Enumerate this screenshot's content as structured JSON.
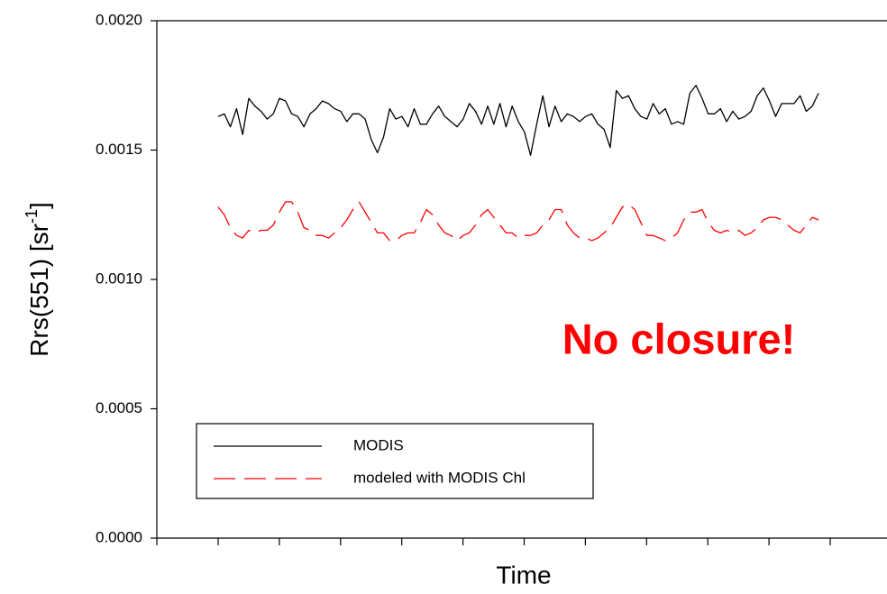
{
  "chart_data": {
    "type": "line",
    "x_label": "Time",
    "y_label_parts": [
      "Rrs(551)  [sr",
      "-1",
      "]"
    ],
    "annotation": "No closure!",
    "annotation_color": "#ff0000",
    "ylim": [
      0,
      0.002
    ],
    "yticks": [
      {
        "value": 0,
        "label": "0.0000"
      },
      {
        "value": 0.0005,
        "label": "0.0005"
      },
      {
        "value": 0.001,
        "label": "0.0010"
      },
      {
        "value": 0.0015,
        "label": "0.0015"
      },
      {
        "value": 0.002,
        "label": "0.0020"
      }
    ],
    "categories": [
      null,
      null,
      null,
      null,
      null,
      null,
      null,
      null,
      null,
      null,
      null,
      null,
      null,
      null,
      null,
      null,
      null,
      null,
      null,
      null,
      null,
      null,
      null,
      null,
      null,
      null,
      null,
      null,
      null,
      null,
      null,
      null,
      null,
      null,
      null,
      null,
      null,
      null,
      null,
      null,
      null,
      null,
      null,
      null,
      null,
      null,
      null,
      null,
      null,
      null,
      null,
      null,
      null,
      null,
      null,
      null,
      null,
      null,
      null,
      null,
      null,
      null,
      null,
      null,
      null,
      null,
      null,
      null,
      null,
      null,
      null,
      null,
      null,
      null,
      null,
      null,
      null,
      null,
      null,
      null,
      null,
      null,
      null,
      null,
      null,
      null,
      null,
      null,
      null,
      null,
      null,
      null,
      null,
      null,
      null,
      null,
      null,
      null,
      null
    ],
    "series": [
      {
        "name": "MODIS",
        "color": "#000000",
        "dashed": false,
        "values": [
          0.00163,
          0.00164,
          0.00159,
          0.00166,
          0.00156,
          0.0017,
          0.00167,
          0.00165,
          0.00162,
          0.00164,
          0.0017,
          0.00169,
          0.00164,
          0.00163,
          0.00159,
          0.00164,
          0.00166,
          0.00169,
          0.00168,
          0.00166,
          0.00165,
          0.00161,
          0.00164,
          0.00164,
          0.00162,
          0.00154,
          0.00149,
          0.00155,
          0.00166,
          0.00162,
          0.00163,
          0.00159,
          0.00166,
          0.0016,
          0.0016,
          0.00164,
          0.00167,
          0.00163,
          0.00161,
          0.00159,
          0.00162,
          0.00168,
          0.00165,
          0.0016,
          0.00167,
          0.0016,
          0.00168,
          0.00159,
          0.00167,
          0.00161,
          0.00157,
          0.00148,
          0.0016,
          0.00171,
          0.00159,
          0.00167,
          0.00161,
          0.00164,
          0.00163,
          0.00161,
          0.00163,
          0.00164,
          0.0016,
          0.00158,
          0.00151,
          0.00173,
          0.0017,
          0.00171,
          0.00166,
          0.00163,
          0.00162,
          0.00168,
          0.00164,
          0.00166,
          0.0016,
          0.00161,
          0.0016,
          0.00172,
          0.00175,
          0.0017,
          0.00164,
          0.00164,
          0.00166,
          0.00161,
          0.00165,
          0.00162,
          0.00163,
          0.00165,
          0.00171,
          0.00174,
          0.00169,
          0.00163,
          0.00168,
          0.00168,
          0.00168,
          0.00171,
          0.00165,
          0.00167,
          0.00172
        ]
      },
      {
        "name": "modeled with MODIS Chl",
        "color": "#ff0000",
        "dashed": true,
        "values": [
          0.00128,
          0.00125,
          0.0012,
          0.00117,
          0.00116,
          0.00119,
          0.00118,
          0.00119,
          0.00119,
          0.00121,
          0.00126,
          0.0013,
          0.0013,
          0.00126,
          0.0012,
          0.00119,
          0.00117,
          0.00117,
          0.00116,
          0.00118,
          0.0012,
          0.00123,
          0.00127,
          0.0013,
          0.00126,
          0.00122,
          0.00118,
          0.00118,
          0.00115,
          0.00115,
          0.00117,
          0.00118,
          0.00118,
          0.00122,
          0.00127,
          0.00125,
          0.00121,
          0.00118,
          0.00117,
          0.00115,
          0.00117,
          0.00118,
          0.00121,
          0.00125,
          0.00127,
          0.00124,
          0.00121,
          0.00118,
          0.00118,
          0.00116,
          0.00117,
          0.00117,
          0.00118,
          0.00121,
          0.00123,
          0.00127,
          0.00127,
          0.00121,
          0.00118,
          0.00116,
          0.00116,
          0.00115,
          0.00116,
          0.00118,
          0.0012,
          0.00124,
          0.00128,
          0.00129,
          0.00127,
          0.00122,
          0.00117,
          0.00117,
          0.00116,
          0.00115,
          0.00116,
          0.00118,
          0.00123,
          0.00126,
          0.00126,
          0.00127,
          0.00122,
          0.00119,
          0.00118,
          0.00119,
          0.00118,
          0.00119,
          0.00117,
          0.00118,
          0.0012,
          0.00123,
          0.00124,
          0.00124,
          0.00123,
          0.00121,
          0.00119,
          0.00118,
          0.00121,
          0.00124,
          0.00123
        ]
      }
    ]
  }
}
